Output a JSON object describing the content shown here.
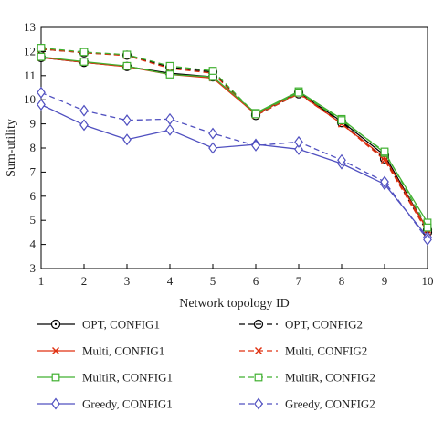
{
  "chart_data": {
    "type": "line",
    "title": "",
    "xlabel": "Network topology ID",
    "ylabel": "Sum-utility",
    "x": [
      1,
      2,
      3,
      4,
      5,
      6,
      7,
      8,
      9,
      10
    ],
    "x_tick_labels": [
      "1",
      "2",
      "3",
      "4",
      "5",
      "6",
      "7",
      "8",
      "9",
      "10"
    ],
    "xlim": [
      1,
      10
    ],
    "ylim": [
      3,
      13
    ],
    "y_ticks": [
      3,
      4,
      5,
      6,
      7,
      8,
      9,
      10,
      11,
      12,
      13
    ],
    "grid": false,
    "legend_placement": "bottom, two columns",
    "series": [
      {
        "name": "OPT, CONFIG1",
        "color": "#000000",
        "dash": "solid",
        "marker": "circle-dot",
        "values": [
          11.75,
          11.55,
          11.38,
          11.1,
          10.95,
          9.4,
          10.3,
          9.1,
          7.7,
          4.6
        ]
      },
      {
        "name": "OPT, CONFIG2",
        "color": "#000000",
        "dash": "dashed",
        "marker": "circle-dash",
        "values": [
          12.1,
          11.95,
          11.85,
          11.35,
          11.15,
          9.35,
          10.25,
          9.05,
          7.55,
          4.5
        ]
      },
      {
        "name": "Multi, CONFIG1",
        "color": "#e03010",
        "dash": "solid",
        "marker": "x",
        "values": [
          11.75,
          11.55,
          11.37,
          11.05,
          10.9,
          9.4,
          10.28,
          9.0,
          7.6,
          4.6
        ]
      },
      {
        "name": "Multi, CONFIG2",
        "color": "#e03010",
        "dash": "dashed",
        "marker": "x",
        "values": [
          12.1,
          11.95,
          11.83,
          11.3,
          11.1,
          9.35,
          10.25,
          9.0,
          7.5,
          4.5
        ]
      },
      {
        "name": "MultiR, CONFIG1",
        "color": "#40b030",
        "dash": "solid",
        "marker": "square",
        "values": [
          11.78,
          11.58,
          11.4,
          11.05,
          10.95,
          9.45,
          10.35,
          9.2,
          7.8,
          4.9
        ]
      },
      {
        "name": "MultiR, CONFIG2",
        "color": "#40b030",
        "dash": "dashed",
        "marker": "square",
        "values": [
          12.15,
          11.98,
          11.87,
          11.4,
          11.2,
          9.4,
          10.3,
          9.15,
          7.85,
          4.7
        ]
      },
      {
        "name": "Greedy, CONFIG1",
        "color": "#5050c0",
        "dash": "solid",
        "marker": "diamond",
        "values": [
          9.8,
          8.95,
          8.35,
          8.75,
          8.0,
          8.15,
          7.95,
          7.35,
          6.5,
          4.3
        ]
      },
      {
        "name": "Greedy, CONFIG2",
        "color": "#5050c0",
        "dash": "dashed",
        "marker": "diamond",
        "values": [
          10.3,
          9.55,
          9.15,
          9.2,
          8.6,
          8.1,
          8.25,
          7.5,
          6.6,
          4.2
        ]
      }
    ]
  }
}
